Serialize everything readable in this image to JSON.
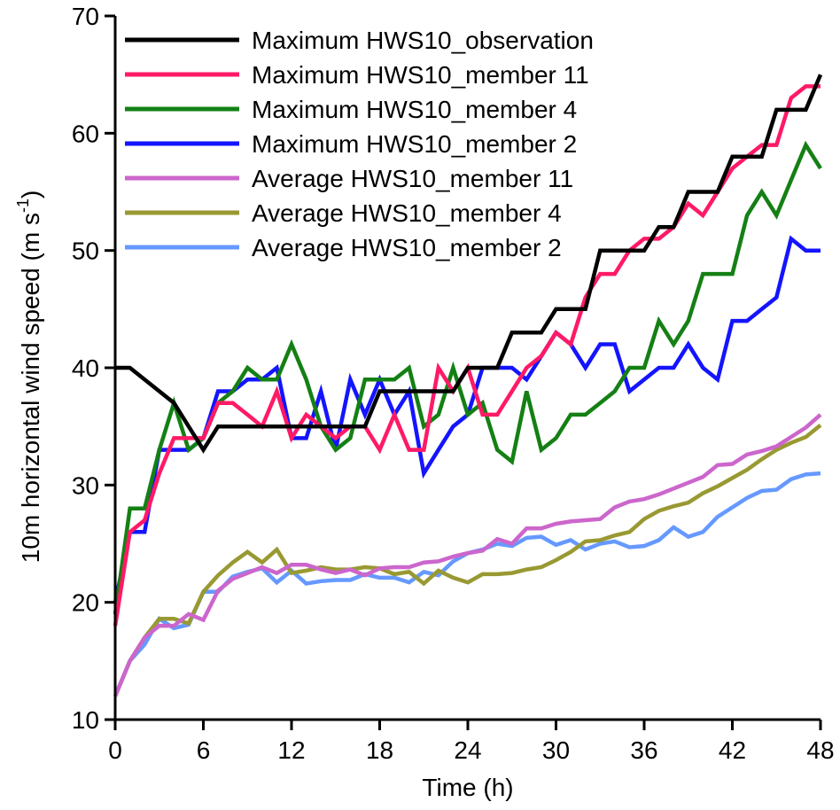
{
  "chart_data": {
    "type": "line",
    "xlabel": "Time (h)",
    "ylabel": {
      "main": "10m horizontal wind speed (m s",
      "sup": "-1",
      "tail": ")"
    },
    "xlim": [
      0,
      48
    ],
    "ylim": [
      10,
      70
    ],
    "xticks": [
      0,
      6,
      12,
      18,
      24,
      30,
      36,
      42,
      48
    ],
    "yticks": [
      10,
      20,
      30,
      40,
      50,
      60,
      70
    ],
    "grid": false,
    "legend_position": "top-left",
    "series": [
      {
        "name": "Maximum HWS10_observation",
        "color": "#000000",
        "x": [
          0,
          1,
          2,
          3,
          4,
          5,
          6,
          7,
          8,
          9,
          10,
          11,
          12,
          13,
          14,
          15,
          16,
          17,
          18,
          19,
          20,
          21,
          22,
          23,
          24,
          25,
          26,
          27,
          28,
          29,
          30,
          31,
          32,
          33,
          34,
          35,
          36,
          37,
          38,
          39,
          40,
          41,
          42,
          43,
          44,
          45,
          46,
          47,
          48
        ],
        "y": [
          40,
          40,
          39,
          38,
          37,
          35,
          33,
          35,
          35,
          35,
          35,
          35,
          35,
          35,
          35,
          35,
          35,
          35,
          38,
          38,
          38,
          38,
          38,
          38,
          40,
          40,
          40,
          43,
          43,
          43,
          45,
          45,
          45,
          50,
          50,
          50,
          50,
          52,
          52,
          55,
          55,
          55,
          58,
          58,
          58,
          62,
          62,
          62,
          65
        ]
      },
      {
        "name": "Maximum HWS10_member 11",
        "color": "#ff1a66",
        "x": [
          0,
          1,
          2,
          3,
          4,
          5,
          6,
          7,
          8,
          9,
          10,
          11,
          12,
          13,
          14,
          15,
          16,
          17,
          18,
          19,
          20,
          21,
          22,
          23,
          24,
          25,
          26,
          27,
          28,
          29,
          30,
          31,
          32,
          33,
          34,
          35,
          36,
          37,
          38,
          39,
          40,
          41,
          42,
          43,
          44,
          45,
          46,
          47,
          48
        ],
        "y": [
          18,
          26,
          27,
          31,
          34,
          34,
          34,
          37,
          37,
          36,
          35,
          38,
          34,
          36,
          35,
          34,
          35,
          35,
          33,
          36,
          33,
          33,
          40,
          38,
          40,
          36,
          36,
          38,
          40,
          41,
          43,
          42,
          46,
          48,
          48,
          50,
          51,
          51,
          52,
          54,
          53,
          55,
          57,
          58,
          59,
          59,
          63,
          64,
          64
        ]
      },
      {
        "name": "Maximum HWS10_member 4",
        "color": "#148014",
        "x": [
          0,
          1,
          2,
          3,
          4,
          5,
          6,
          7,
          8,
          9,
          10,
          11,
          12,
          13,
          14,
          15,
          16,
          17,
          18,
          19,
          20,
          21,
          22,
          23,
          24,
          25,
          26,
          27,
          28,
          29,
          30,
          31,
          32,
          33,
          34,
          35,
          36,
          37,
          38,
          39,
          40,
          41,
          42,
          43,
          44,
          45,
          46,
          47,
          48
        ],
        "y": [
          19,
          28,
          28,
          33,
          37,
          33,
          34,
          37,
          38,
          40,
          39,
          39,
          42,
          39,
          35,
          33,
          34,
          39,
          39,
          39,
          40,
          35,
          36,
          40,
          36,
          37,
          33,
          32,
          38,
          33,
          34,
          36,
          36,
          37,
          38,
          40,
          40,
          44,
          42,
          44,
          48,
          48,
          48,
          53,
          55,
          53,
          56,
          59,
          57
        ]
      },
      {
        "name": "Maximum HWS10_member 2",
        "color": "#1414ff",
        "x": [
          0,
          1,
          2,
          3,
          4,
          5,
          6,
          7,
          8,
          9,
          10,
          11,
          12,
          13,
          14,
          15,
          16,
          17,
          18,
          19,
          20,
          21,
          22,
          23,
          24,
          25,
          26,
          27,
          28,
          29,
          30,
          31,
          32,
          33,
          34,
          35,
          36,
          37,
          38,
          39,
          40,
          41,
          42,
          43,
          44,
          45,
          46,
          47,
          48
        ],
        "y": [
          20,
          26,
          26,
          33,
          33,
          33,
          34,
          38,
          38,
          39,
          39,
          40,
          34,
          34,
          38,
          33,
          39,
          36,
          39,
          36,
          38,
          31,
          33,
          35,
          36,
          40,
          40,
          40,
          39,
          41,
          43,
          42,
          40,
          42,
          42,
          38,
          39,
          40,
          40,
          42,
          40,
          39,
          44,
          44,
          45,
          46,
          51,
          50,
          50
        ]
      },
      {
        "name": "Average HWS10_member 11",
        "color": "#cc66cc",
        "x": [
          0,
          1,
          2,
          3,
          4,
          5,
          6,
          7,
          8,
          9,
          10,
          11,
          12,
          13,
          14,
          15,
          16,
          17,
          18,
          19,
          20,
          21,
          22,
          23,
          24,
          25,
          26,
          27,
          28,
          29,
          30,
          31,
          32,
          33,
          34,
          35,
          36,
          37,
          38,
          39,
          40,
          41,
          42,
          43,
          44,
          45,
          46,
          47,
          48
        ],
        "y": [
          12,
          15,
          17,
          18,
          18,
          19,
          18.5,
          21,
          22,
          22.5,
          23,
          22.5,
          23.2,
          23.2,
          22.8,
          22.5,
          22.8,
          22.3,
          22.9,
          23,
          23,
          23.4,
          23.5,
          23.9,
          24.2,
          24.4,
          25.4,
          25,
          26.3,
          26.3,
          26.7,
          26.9,
          27,
          27.1,
          28.1,
          28.6,
          28.8,
          29.2,
          29.7,
          30.2,
          30.7,
          31.7,
          31.8,
          32.6,
          32.9,
          33.3,
          34.1,
          34.9,
          36
        ]
      },
      {
        "name": "Average HWS10_member 4",
        "color": "#999933",
        "x": [
          0,
          1,
          2,
          3,
          4,
          5,
          6,
          7,
          8,
          9,
          10,
          11,
          12,
          13,
          14,
          15,
          16,
          17,
          18,
          19,
          20,
          21,
          22,
          23,
          24,
          25,
          26,
          27,
          28,
          29,
          30,
          31,
          32,
          33,
          34,
          35,
          36,
          37,
          38,
          39,
          40,
          41,
          42,
          43,
          44,
          45,
          46,
          47,
          48
        ],
        "y": [
          12,
          15,
          17,
          18.6,
          18.6,
          18.2,
          20.9,
          22.3,
          23.4,
          24.3,
          23.4,
          24.5,
          22.5,
          22.7,
          23,
          22.8,
          22.8,
          23,
          22.9,
          22.4,
          22.6,
          21.6,
          22.7,
          22.1,
          21.7,
          22.4,
          22.4,
          22.5,
          22.8,
          23,
          23.6,
          24.3,
          25.2,
          25.3,
          25.7,
          26,
          27.1,
          27.8,
          28.2,
          28.5,
          29.3,
          29.9,
          30.6,
          31.3,
          32.2,
          33,
          33.6,
          34.1,
          35.1
        ]
      },
      {
        "name": "Average HWS10_member 2",
        "color": "#6699ff",
        "x": [
          0,
          1,
          2,
          3,
          4,
          5,
          6,
          7,
          8,
          9,
          10,
          11,
          12,
          13,
          14,
          15,
          16,
          17,
          18,
          19,
          20,
          21,
          22,
          23,
          24,
          25,
          26,
          27,
          28,
          29,
          30,
          31,
          32,
          33,
          34,
          35,
          36,
          37,
          38,
          39,
          40,
          41,
          42,
          43,
          44,
          45,
          46,
          47,
          48
        ],
        "y": [
          12,
          15,
          16.4,
          18.6,
          17.8,
          18.1,
          20.9,
          20.9,
          22.2,
          22.6,
          22.9,
          21.7,
          22.7,
          21.6,
          21.8,
          21.9,
          21.9,
          22.4,
          22.1,
          22.1,
          21.7,
          22.6,
          22.3,
          23.5,
          24.2,
          24.5,
          25,
          24.8,
          25.5,
          25.6,
          24.9,
          25.3,
          24.5,
          25,
          25.2,
          24.7,
          24.8,
          25.3,
          26.4,
          25.6,
          26,
          27.3,
          28.1,
          28.9,
          29.5,
          29.6,
          30.5,
          30.9,
          31
        ]
      }
    ]
  }
}
